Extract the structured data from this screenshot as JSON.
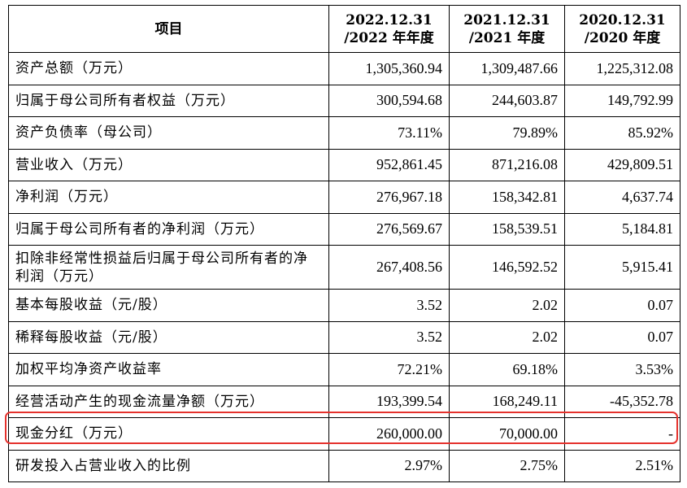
{
  "table": {
    "headers": [
      [
        "项目"
      ],
      [
        "2022.12.31",
        "/2022 年年度"
      ],
      [
        "2021.12.31",
        "/2021 年度"
      ],
      [
        "2020.12.31",
        "/2020 年度"
      ]
    ],
    "rows": [
      [
        "资产总额（万元）",
        "1,305,360.94",
        "1,309,487.66",
        "1,225,312.08"
      ],
      [
        "归属于母公司所有者权益（万元）",
        "300,594.68",
        "244,603.87",
        "149,792.99"
      ],
      [
        "资产负债率（母公司）",
        "73.11%",
        "79.89%",
        "85.92%"
      ],
      [
        "营业收入（万元）",
        "952,861.45",
        "871,216.08",
        "429,809.51"
      ],
      [
        "净利润（万元）",
        "276,967.18",
        "158,342.81",
        "4,637.74"
      ],
      [
        "归属于母公司所有者的净利润（万元）",
        "276,569.67",
        "158,539.51",
        "5,184.81"
      ],
      [
        "扣除非经常性损益后归属于母公司所有者的净利润（万元）",
        "267,408.56",
        "146,592.52",
        "5,915.41"
      ],
      [
        "基本每股收益（元/股）",
        "3.52",
        "2.02",
        "0.07"
      ],
      [
        "稀释每股收益（元/股）",
        "3.52",
        "2.02",
        "0.07"
      ],
      [
        "加权平均净资产收益率",
        "72.21%",
        "69.18%",
        "3.53%"
      ],
      [
        "经营活动产生的现金流量净额（万元）",
        "193,399.54",
        "168,249.11",
        "-45,352.78"
      ],
      [
        "现金分红（万元）",
        "260,000.00",
        "70,000.00",
        "-"
      ],
      [
        "研发投入占营业收入的比例",
        "2.97%",
        "2.75%",
        "2.51%"
      ]
    ]
  },
  "colors": {
    "highlight_border": "#e5322d"
  }
}
